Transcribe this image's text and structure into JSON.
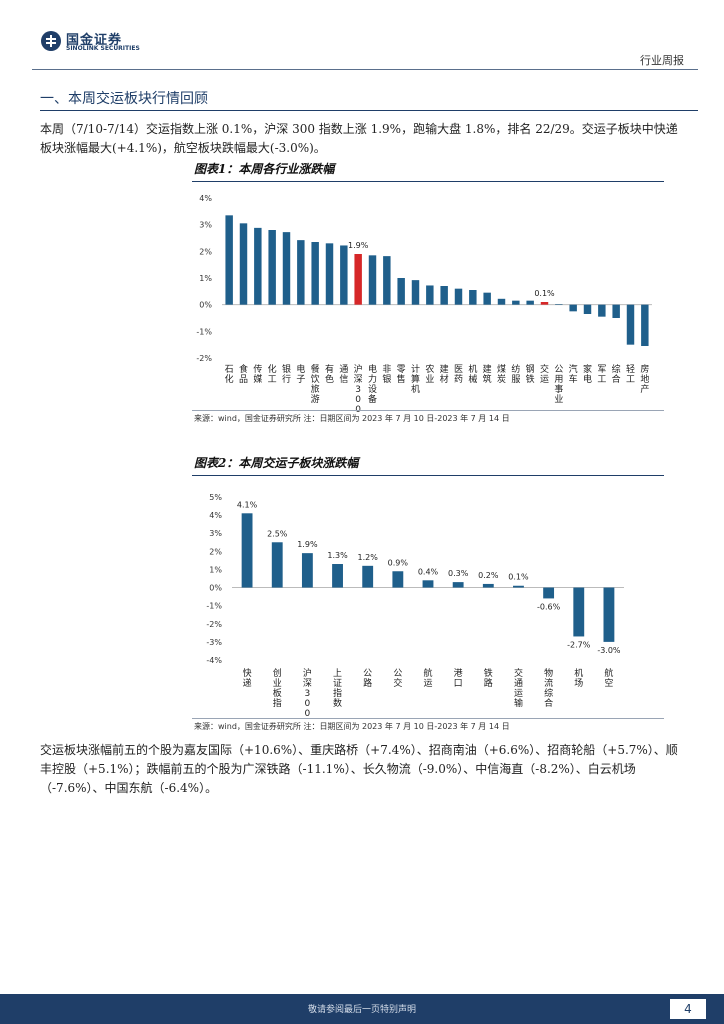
{
  "header": {
    "logo_cn": "国金证券",
    "logo_en": "SINOLINK SECURITIES",
    "report_type": "行业周报"
  },
  "section": {
    "title": "一、本周交运板块行情回顾"
  },
  "paragraphs": {
    "p1": "本周（7/10-7/14）交运指数上涨 0.1%，沪深 300 指数上涨 1.9%，跑输大盘 1.8%，排名 22/29。交运子板块中快递板块涨幅最大(+4.1%)，航空板块跌幅最大(-3.0%)。",
    "p2": "交运板块涨幅前五的个股为嘉友国际（+10.6%）、重庆路桥（+7.4%）、招商南油（+6.6%）、招商轮船（+5.7%）、顺丰控股（+5.1%）；跌幅前五的个股为广深铁路（-11.1%）、长久物流（-9.0%）、中信海直（-8.2%）、白云机场（-7.6%）、中国东航（-6.4%）。"
  },
  "figure1": {
    "title": "图表1：本周各行业涨跌幅",
    "source": "来源：wind，国金证券研究所    注：日期区间为 2023 年 7 月 10 日-2023 年 7 月 14 日"
  },
  "figure2": {
    "title": "图表2：本周交运子板块涨跌幅",
    "source": "来源：wind，国金证券研究所    注：日期区间为 2023 年 7 月 10 日-2023 年 7 月 14 日"
  },
  "footer": {
    "text": "敬请参阅最后一页特别声明",
    "page": "4"
  },
  "colors": {
    "bar": "#1f5f8b",
    "highlight": "#d62728",
    "brand": "#1f3e68"
  },
  "chart_data": [
    {
      "type": "bar",
      "title": "图表1：本周各行业涨跌幅",
      "categories": [
        "石化",
        "食品",
        "传媒",
        "化工",
        "银行",
        "电子",
        "餐饮旅游",
        "有色",
        "通信",
        "沪深300",
        "电力设备",
        "非银",
        "零售",
        "计算机",
        "农业",
        "建材",
        "医药",
        "机械",
        "建筑",
        "煤炭",
        "纺服",
        "钢铁",
        "交运",
        "公用事业",
        "汽车",
        "家电",
        "军工",
        "综合",
        "轻工",
        "房地产"
      ],
      "values": [
        3.35,
        3.05,
        2.88,
        2.8,
        2.72,
        2.42,
        2.35,
        2.3,
        2.22,
        1.9,
        1.85,
        1.82,
        1.0,
        0.92,
        0.72,
        0.7,
        0.6,
        0.55,
        0.45,
        0.22,
        0.15,
        0.15,
        0.1,
        0.02,
        -0.25,
        -0.35,
        -0.45,
        -0.5,
        -1.5,
        -1.55
      ],
      "highlight": [
        9,
        22
      ],
      "data_labels": {
        "9": "1.9%",
        "22": "0.1%"
      },
      "ylim": [
        -2,
        4
      ],
      "yticks": [
        "-2%",
        "-1%",
        "0%",
        "1%",
        "2%",
        "3%",
        "4%"
      ],
      "ytick_values": [
        -2,
        -1,
        0,
        1,
        2,
        3,
        4
      ]
    },
    {
      "type": "bar",
      "title": "图表2：本周交运子板块涨跌幅",
      "categories": [
        "快递",
        "创业板指",
        "沪深300",
        "上证指数",
        "公路",
        "公交",
        "航运",
        "港口",
        "铁路",
        "交通运输",
        "物流综合",
        "机场",
        "航空"
      ],
      "values": [
        4.1,
        2.5,
        1.9,
        1.3,
        1.2,
        0.9,
        0.4,
        0.3,
        0.2,
        0.1,
        -0.6,
        -2.7,
        -3.0
      ],
      "labels": [
        "4.1%",
        "2.5%",
        "1.9%",
        "1.3%",
        "1.2%",
        "0.9%",
        "0.4%",
        "0.3%",
        "0.2%",
        "0.1%",
        "-0.6%",
        "-2.7%",
        "-3.0%"
      ],
      "ylim": [
        -4,
        5
      ],
      "yticks": [
        "-4%",
        "-3%",
        "-2%",
        "-1%",
        "0%",
        "1%",
        "2%",
        "3%",
        "4%",
        "5%"
      ],
      "ytick_values": [
        -4,
        -3,
        -2,
        -1,
        0,
        1,
        2,
        3,
        4,
        5
      ]
    }
  ]
}
